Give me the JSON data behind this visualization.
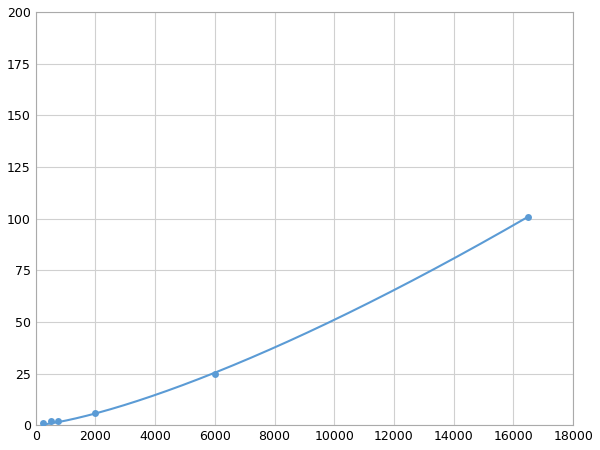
{
  "x_data": [
    250,
    500,
    750,
    2000,
    6000,
    16500
  ],
  "y_data": [
    1,
    2,
    2,
    6,
    25,
    101
  ],
  "line_color": "#5b9bd5",
  "marker_color": "#5b9bd5",
  "marker_size": 5,
  "line_width": 1.5,
  "xlim": [
    0,
    18000
  ],
  "ylim": [
    0,
    200
  ],
  "xticks": [
    0,
    2000,
    4000,
    6000,
    8000,
    10000,
    12000,
    14000,
    16000,
    18000
  ],
  "yticks": [
    0,
    25,
    50,
    75,
    100,
    125,
    150,
    175,
    200
  ],
  "grid_color": "#d0d0d0",
  "background_color": "#ffffff",
  "tick_fontsize": 9,
  "figsize": [
    6.0,
    4.5
  ],
  "dpi": 100
}
